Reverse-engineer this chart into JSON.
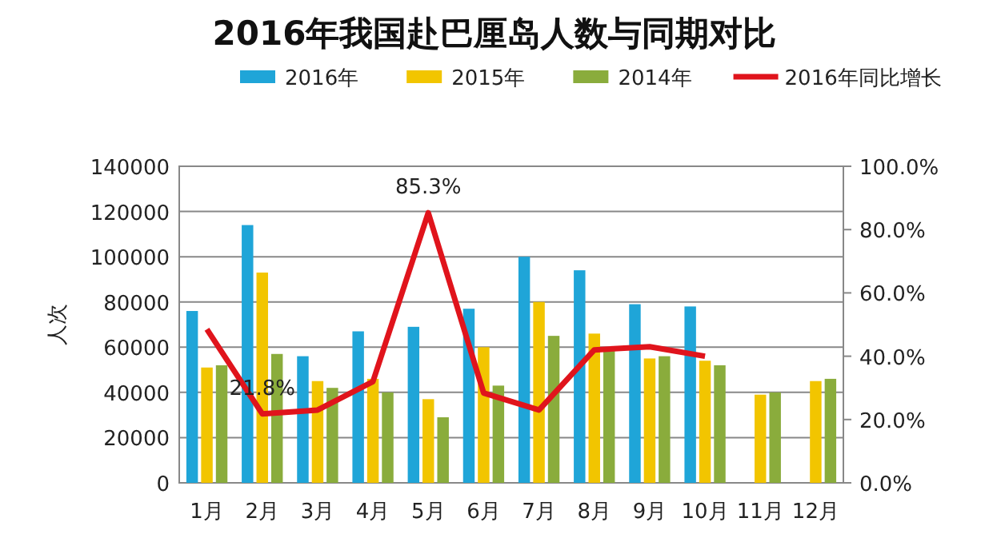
{
  "chart_data": {
    "type": "bar",
    "title": "2016年我国赴巴厘岛人数与同期对比",
    "ylabel": "人次",
    "categories": [
      "1月",
      "2月",
      "3月",
      "4月",
      "5月",
      "6月",
      "7月",
      "8月",
      "9月",
      "10月",
      "11月",
      "12月"
    ],
    "series": [
      {
        "name": "2016年",
        "color": "#1fa5d8",
        "values": [
          76000,
          114000,
          56000,
          67000,
          69000,
          77000,
          100000,
          94000,
          79000,
          78000,
          null,
          null
        ]
      },
      {
        "name": "2015年",
        "color": "#f2c500",
        "values": [
          51000,
          93000,
          45000,
          46000,
          37000,
          60000,
          80000,
          66000,
          55000,
          54000,
          39000,
          45000
        ]
      },
      {
        "name": "2014年",
        "color": "#8aac3c",
        "values": [
          52000,
          57000,
          42000,
          40000,
          29000,
          43000,
          65000,
          59000,
          56000,
          52000,
          40000,
          46000
        ]
      },
      {
        "name": "2016年同比增长",
        "type": "line",
        "axis": "y2",
        "color": "#e0141c",
        "values": [
          48.5,
          21.8,
          23,
          32,
          85.3,
          28.4,
          23,
          42,
          43,
          40,
          null,
          null
        ],
        "value_labels": [
          null,
          "21.8%",
          null,
          null,
          "85.3%",
          null,
          null,
          null,
          null,
          null,
          null,
          null
        ]
      }
    ],
    "ylim": [
      0,
      140000
    ],
    "yticks": [
      0,
      20000,
      40000,
      60000,
      80000,
      100000,
      120000,
      140000
    ],
    "y2lim": [
      0,
      100
    ],
    "y2ticks": [
      {
        "value": 0,
        "label": "0.0%"
      },
      {
        "value": 20,
        "label": "20.0%"
      },
      {
        "value": 40,
        "label": "40.0%"
      },
      {
        "value": 60,
        "label": "60.0%"
      },
      {
        "value": 80,
        "label": "80.0%"
      },
      {
        "value": 100,
        "label": "100.0%"
      }
    ],
    "grid": "y",
    "legend": "top",
    "marker": "none",
    "line_style": "solid"
  }
}
